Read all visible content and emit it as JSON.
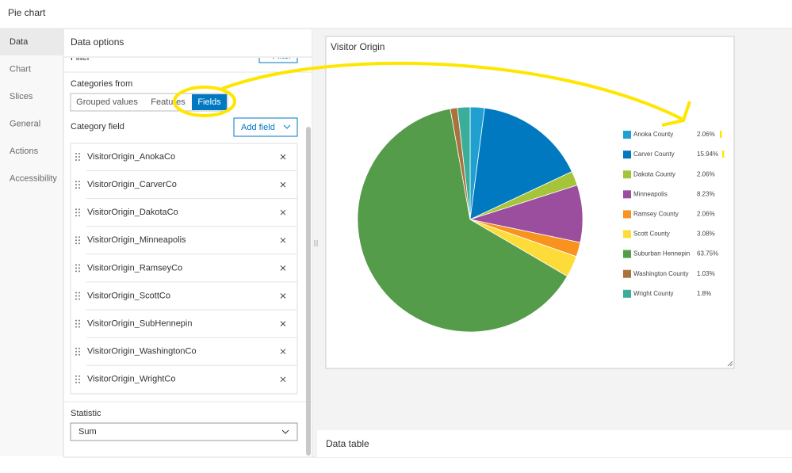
{
  "header": {
    "title": "Pie chart"
  },
  "tabs": [
    "Data",
    "Chart",
    "Slices",
    "General",
    "Actions",
    "Accessibility"
  ],
  "panel": {
    "title": "Data options",
    "filter_label": "Filter",
    "filter_button": "+ Filter",
    "categories_from": "Categories from",
    "segments": [
      "Grouped values",
      "Features",
      "Fields"
    ],
    "category_field": "Category field",
    "add_field": "Add field",
    "fields": [
      "VisitorOrigin_AnokaCo",
      "VisitorOrigin_CarverCo",
      "VisitorOrigin_DakotaCo",
      "VisitorOrigin_Minneapolis",
      "VisitorOrigin_RamseyCo",
      "VisitorOrigin_ScottCo",
      "VisitorOrigin_SubHennepin",
      "VisitorOrigin_WashingtonCo",
      "VisitorOrigin_WrightCo"
    ],
    "statistic": "Statistic",
    "statistic_value": "Sum"
  },
  "chart_data": {
    "type": "pie",
    "title": "Visitor Origin",
    "categories": [
      "Anoka County",
      "Carver County",
      "Dakota County",
      "Minneapolis",
      "Ramsey County",
      "Scott County",
      "Suburban Hennepin",
      "Washington County",
      "Wright County"
    ],
    "values": [
      2.06,
      15.94,
      2.06,
      8.23,
      2.06,
      3.08,
      63.75,
      1.03,
      1.8
    ],
    "value_labels": [
      "2.06%",
      "15.94%",
      "2.06%",
      "8.23%",
      "2.06%",
      "3.08%",
      "63.75%",
      "1.03%",
      "1.8%"
    ],
    "colors": [
      "#1fa0d0",
      "#0079c1",
      "#a5c43a",
      "#9b4e9e",
      "#f7931e",
      "#fddc3a",
      "#549b4a",
      "#a8733e",
      "#3aae9b"
    ],
    "legend": "right"
  },
  "data_table": {
    "title": "Data table"
  }
}
